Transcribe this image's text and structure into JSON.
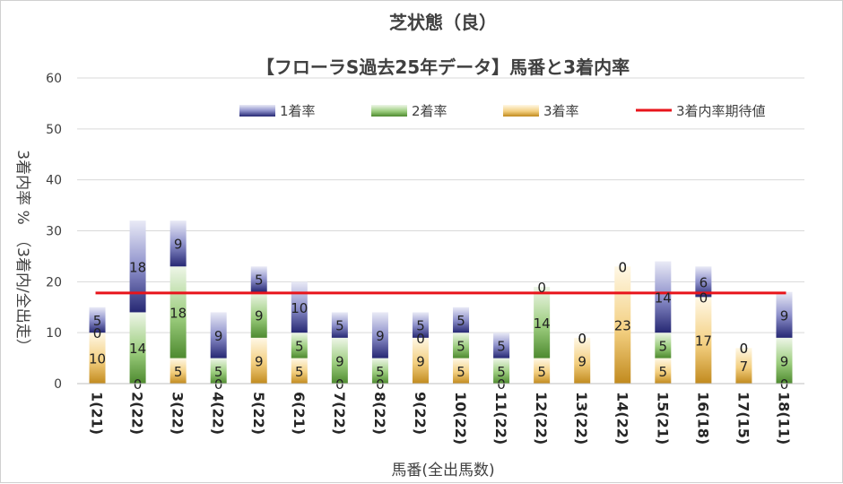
{
  "chart_data": {
    "type": "bar",
    "stacked": true,
    "title": "芝状態（良）",
    "subtitle": "【フローラS過去25年データ】馬番と3着内率",
    "xlabel": "馬番(全出馬数)",
    "ylabel": "3着内率 %　（3着内/全出走）",
    "ylim": [
      0,
      60
    ],
    "yticks": [
      "0",
      "10",
      "20",
      "30",
      "40",
      "50",
      "60"
    ],
    "categories": [
      "1(21)",
      "2(22)",
      "3(22)",
      "4(22)",
      "5(22)",
      "6(21)",
      "7(22)",
      "8(22)",
      "9(22)",
      "10(22)",
      "11(22)",
      "12(22)",
      "13(22)",
      "14(22)",
      "15(21)",
      "16(18)",
      "17(15)",
      "18(11)"
    ],
    "series": [
      {
        "name": "3着率",
        "color": "#c9952a",
        "values": [
          10,
          0,
          5,
          0,
          9,
          5,
          0,
          0,
          9,
          5,
          0,
          5,
          9,
          23,
          5,
          17,
          7,
          0
        ]
      },
      {
        "name": "2着率",
        "color": "#5a9a3a",
        "values": [
          0,
          14,
          18,
          5,
          9,
          5,
          9,
          5,
          0,
          5,
          5,
          14,
          0,
          0,
          5,
          0,
          0,
          9
        ]
      },
      {
        "name": "1着率",
        "color": "#3d3f9a",
        "values": [
          5,
          18,
          9,
          9,
          5,
          10,
          5,
          9,
          5,
          5,
          5,
          0,
          0,
          0,
          14,
          6,
          0,
          9
        ]
      }
    ],
    "reference_line": {
      "name": "3着内率期待値",
      "value": 17.8,
      "color": "#e8141b"
    },
    "legend": [
      "1着率",
      "2着率",
      "3着率",
      "3着内率期待値"
    ],
    "legend_position": "top",
    "grid": true
  }
}
